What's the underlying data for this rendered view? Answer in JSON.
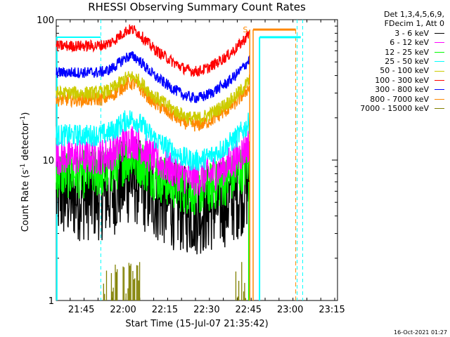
{
  "chart_data": {
    "type": "line",
    "title": "RHESSI Observing Summary Count Rates",
    "xlabel": "Start Time (15-Jul-07 21:35:42)",
    "ylabel_main": "Count Rate (s",
    "ylabel_sup": "-1",
    "ylabel_tail": " detector",
    "ylabel_close": ")",
    "yscale": "log",
    "ylim": [
      1,
      100
    ],
    "ytick_labels": [
      "100",
      "10",
      "1"
    ],
    "xlim_minutes": [
      0,
      101
    ],
    "xticks": [
      {
        "label": "21:45",
        "minute": 9
      },
      {
        "label": "22:00",
        "minute": 24
      },
      {
        "label": "22:15",
        "minute": 39
      },
      {
        "label": "22:30",
        "minute": 54
      },
      {
        "label": "22:45",
        "minute": 69
      },
      {
        "label": "23:00",
        "minute": 84
      },
      {
        "label": "23:15",
        "minute": 99
      }
    ],
    "legend_header": [
      "Det 1,3,4,5,6,9,",
      "FDecim 1, Att 0"
    ],
    "series": [
      {
        "name": "3 - 6 keV",
        "color": "#000000",
        "level": 5.5,
        "spread": 0.32,
        "dipAmp": 0.1
      },
      {
        "name": "6 - 12 keV",
        "color": "#ff00ff",
        "level": 10.5,
        "spread": 0.13,
        "dipAmp": 0.15
      },
      {
        "name": "12 - 25 keV",
        "color": "#00ff00",
        "level": 8.0,
        "spread": 0.18,
        "dipAmp": 0.12
      },
      {
        "name": "25 - 50 keV",
        "color": "#00ffff",
        "level": 15.0,
        "spread": 0.08,
        "dipAmp": 0.18
      },
      {
        "name": "50 - 100 keV",
        "color": "#cccc00",
        "level": 30.0,
        "spread": 0.05,
        "dipAmp": 0.18
      },
      {
        "name": "100 - 300 keV",
        "color": "#ff0000",
        "level": 65.0,
        "spread": 0.04,
        "dipAmp": 0.18
      },
      {
        "name": "300 - 800 keV",
        "color": "#0000ff",
        "level": 42.0,
        "spread": 0.04,
        "dipAmp": 0.18
      },
      {
        "name": "800 - 7000 keV",
        "color": "#ff8800",
        "level": 27.0,
        "spread": 0.05,
        "dipAmp": 0.18
      },
      {
        "name": "7000 - 15000 keV",
        "color": "#808000",
        "level": 1.5,
        "spread": 0.0,
        "dipAmp": 0.0
      }
    ],
    "annotations": {
      "saa_label": "S",
      "saa_level": 85,
      "post_gap_level": 75,
      "cyan_early_level": 75,
      "gap_start_minute": 69.5,
      "resume_minute": 73,
      "dashed_minutes": [
        16,
        86.5,
        88.5
      ]
    }
  },
  "timestamp": "16-Oct-2021 01:27"
}
